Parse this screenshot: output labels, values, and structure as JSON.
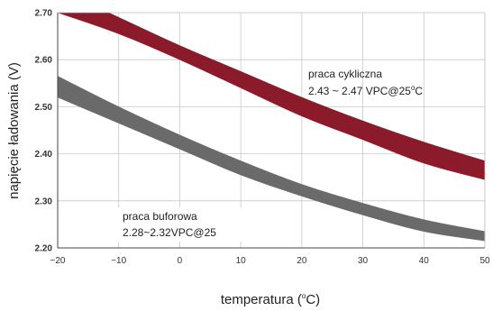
{
  "chart_data": {
    "type": "area",
    "xlabel": "temperatura (°C)",
    "xlabel_parts": {
      "pre": "temperatura (",
      "sup": "o",
      "post": "C)"
    },
    "ylabel": "napięcie ładowania (V)",
    "xlim": [
      -20,
      50
    ],
    "ylim": [
      2.2,
      2.7
    ],
    "x_ticks": [
      "−20",
      "−10",
      "0",
      "10",
      "20",
      "30",
      "40",
      "50"
    ],
    "y_ticks": [
      "2.20",
      "2.30",
      "2.40",
      "2.50",
      "2.60",
      "2.70"
    ],
    "grid": true,
    "series": [
      {
        "name": "praca cykliczna",
        "color": "#8b1a2b",
        "x": [
          -20,
          -10,
          0,
          10,
          20,
          30,
          40,
          50
        ],
        "upper": [
          2.75,
          2.69,
          2.63,
          2.575,
          2.52,
          2.47,
          2.425,
          2.385
        ],
        "lower": [
          2.7,
          2.655,
          2.6,
          2.54,
          2.48,
          2.43,
          2.38,
          2.345
        ]
      },
      {
        "name": "praca buforowa",
        "color": "#6a6a6a",
        "x": [
          -20,
          -10,
          0,
          10,
          20,
          30,
          40,
          50
        ],
        "upper": [
          2.565,
          2.5,
          2.44,
          2.385,
          2.335,
          2.295,
          2.26,
          2.235
        ],
        "lower": [
          2.52,
          2.465,
          2.41,
          2.355,
          2.31,
          2.27,
          2.235,
          2.215
        ]
      }
    ],
    "annotations": [
      {
        "id": "cyclic",
        "line1": "praca cykliczna",
        "line2_pre": "2.43 ~ 2.47 VPC@25",
        "line2_sup": "o",
        "line2_post": "C"
      },
      {
        "id": "float",
        "line1": "praca buforowa",
        "line2": "2.28~2.32VPC@25"
      }
    ]
  }
}
